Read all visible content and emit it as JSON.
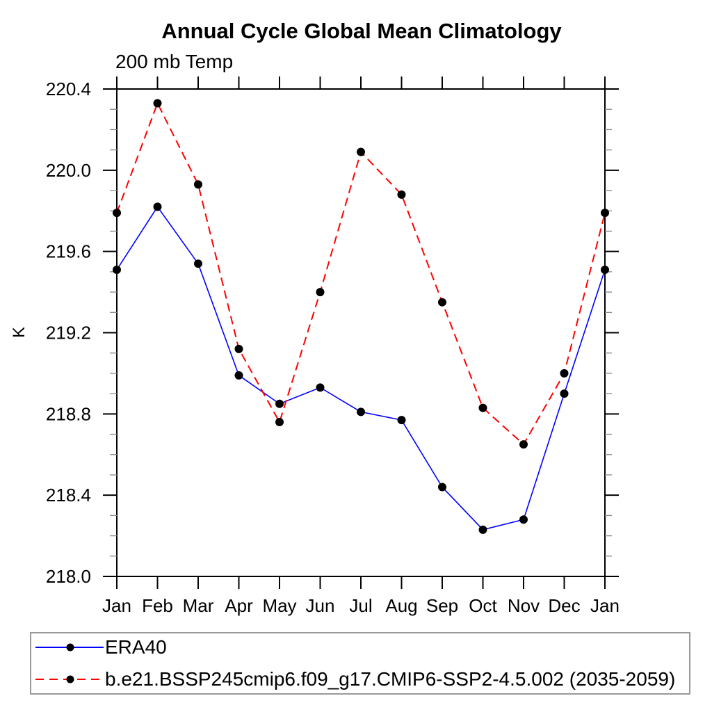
{
  "chart_data": {
    "type": "line",
    "title": "Annual Cycle Global Mean Climatology",
    "subtitle": "200 mb Temp",
    "xlabel": "",
    "ylabel": "K",
    "categories": [
      "Jan",
      "Feb",
      "Mar",
      "Apr",
      "May",
      "Jun",
      "Jul",
      "Aug",
      "Sep",
      "Oct",
      "Nov",
      "Dec",
      "Jan"
    ],
    "ylim": [
      218.0,
      220.4
    ],
    "ytick_major": [
      218.0,
      218.4,
      218.8,
      219.2,
      219.6,
      220.0,
      220.4
    ],
    "ytick_minor_step": 0.1,
    "grid": false,
    "legend_position": "bottom-left-box",
    "series": [
      {
        "name": "ERA40",
        "color": "#0000ff",
        "line_style": "solid",
        "marker": "filled-black-circle",
        "values": [
          219.51,
          219.82,
          219.54,
          218.99,
          218.85,
          218.93,
          218.81,
          218.77,
          218.44,
          218.23,
          218.28,
          218.9,
          219.51
        ]
      },
      {
        "name": "b.e21.BSSP245cmip6.f09_g17.CMIP6-SSP2-4.5.002 (2035-2059)",
        "color": "#ff0000",
        "line_style": "dashed",
        "marker": "filled-black-circle",
        "values": [
          219.79,
          220.33,
          219.93,
          219.12,
          218.76,
          219.4,
          220.09,
          219.88,
          219.35,
          218.83,
          218.65,
          219.0,
          219.79
        ]
      }
    ]
  },
  "colors": {
    "axis": "#000000",
    "minor_tick": "#888888",
    "marker": "#000000",
    "legend_border": "#999999",
    "background": "#ffffff"
  }
}
